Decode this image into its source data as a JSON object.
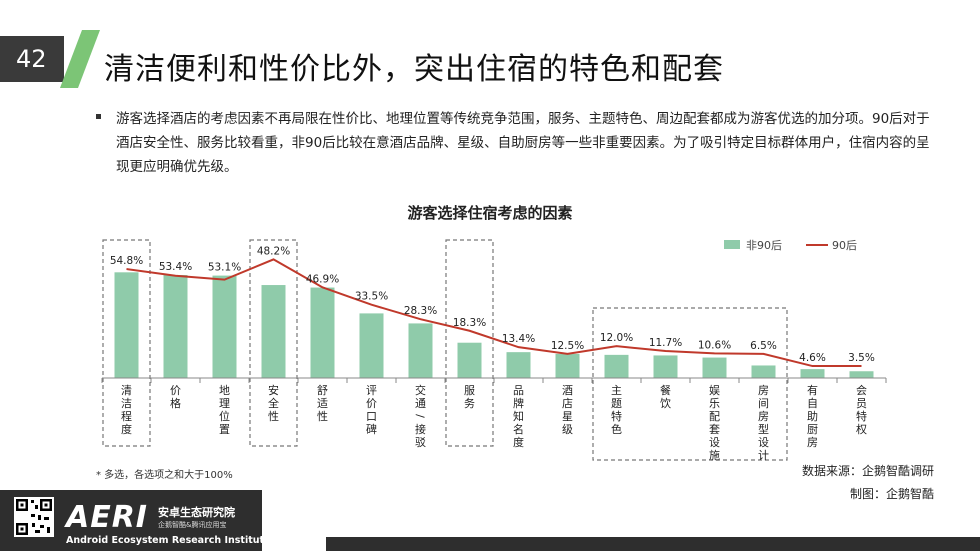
{
  "slide": {
    "page_number": "42",
    "title": "清洁便利和性价比外，突出住宿的特色和配套",
    "bullet": "游客选择酒店的考虑因素不再局限在性价比、地理位置等传统竞争范围，服务、主题特色、周边配套都成为游客优选的加分项。90后对于酒店安全性、服务比较看重，非90后比较在意酒店品牌、星级、自助厨房等一些非重要因素。为了吸引特定目标群体用户，住宿内容的呈现更应明确优先级。",
    "footnote": "*  多选，各选项之和大于100%",
    "source": "数据来源：企鹅智酷调研",
    "made_by": "制图：企鹅智酷",
    "accent_color": "#7cc576"
  },
  "footer": {
    "logo_text": "AERI",
    "institute_cn": "安卓生态研究院",
    "institute_sub": "企鹅智酷&腾讯应用宝",
    "institute_en": "Android Ecosystem Research Institute"
  },
  "chart_data": {
    "type": "bar",
    "title": "游客选择住宿考虑的因素",
    "categories": [
      "清洁程度",
      "价格",
      "地理位置",
      "安全性",
      "舒适性",
      "评价口碑",
      "交通/接驳",
      "服务",
      "品牌知名度",
      "酒店星级",
      "主题特色",
      "餐饮",
      "娱乐配套设施",
      "房间房型设计",
      "有自助厨房",
      "会员特权"
    ],
    "series": [
      {
        "name": "非90后",
        "kind": "bar",
        "color": "#8fcbaa",
        "values": [
          54.8,
          53.4,
          53.1,
          48.2,
          46.9,
          33.5,
          28.3,
          18.3,
          13.4,
          12.5,
          12.0,
          11.7,
          10.6,
          6.5,
          4.6,
          3.5
        ]
      },
      {
        "name": "90后",
        "kind": "line",
        "color": "#c0392b",
        "values": [
          56.5,
          53.0,
          51.0,
          61.5,
          47.0,
          38.0,
          30.5,
          24.5,
          16.0,
          12.5,
          16.5,
          14.0,
          12.8,
          12.5,
          6.2,
          6.2
        ]
      }
    ],
    "data_labels": [
      "54.8%",
      "53.4%",
      "53.1%",
      "48.2%",
      "46.9%",
      "33.5%",
      "28.3%",
      "18.3%",
      "13.4%",
      "12.5%",
      "12.0%",
      "11.7%",
      "10.6%",
      "6.5%",
      "4.6%",
      "3.5%"
    ],
    "highlight_groups": [
      [
        0
      ],
      [
        3
      ],
      [
        7
      ],
      [
        10,
        11,
        12,
        13
      ]
    ],
    "ylim": [
      0,
      70
    ],
    "grid": false,
    "legend_position": "top-right"
  }
}
